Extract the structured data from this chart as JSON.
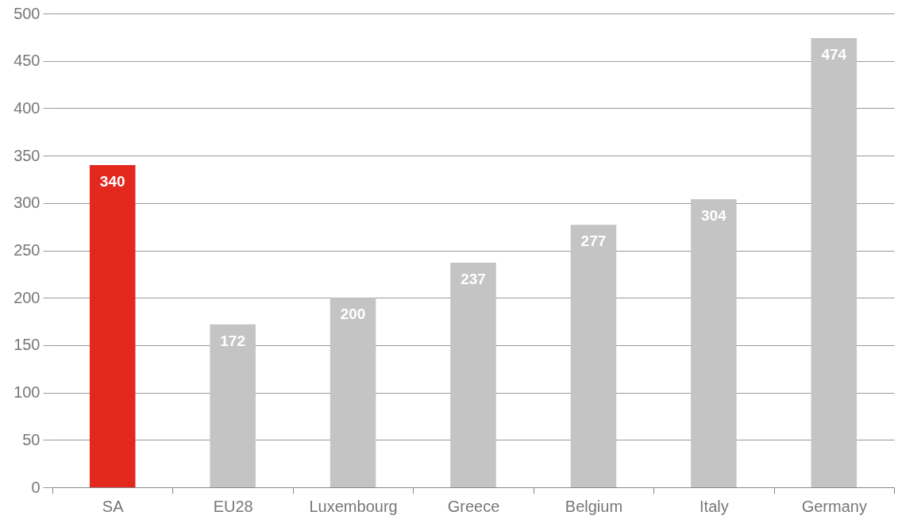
{
  "chart_data": {
    "type": "bar",
    "categories": [
      "SA",
      "EU28",
      "Luxembourg",
      "Greece",
      "Belgium",
      "Italy",
      "Germany"
    ],
    "values": [
      340,
      172,
      200,
      237,
      277,
      304,
      474
    ],
    "colors": [
      "#e3281e",
      "#c4c4c4",
      "#c4c4c4",
      "#c4c4c4",
      "#c4c4c4",
      "#c4c4c4",
      "#c4c4c4"
    ],
    "ylim": [
      0,
      500
    ],
    "yticks": [
      0,
      50,
      100,
      150,
      200,
      250,
      300,
      350,
      400,
      450,
      500
    ],
    "grid": "y",
    "data_labels": true
  }
}
